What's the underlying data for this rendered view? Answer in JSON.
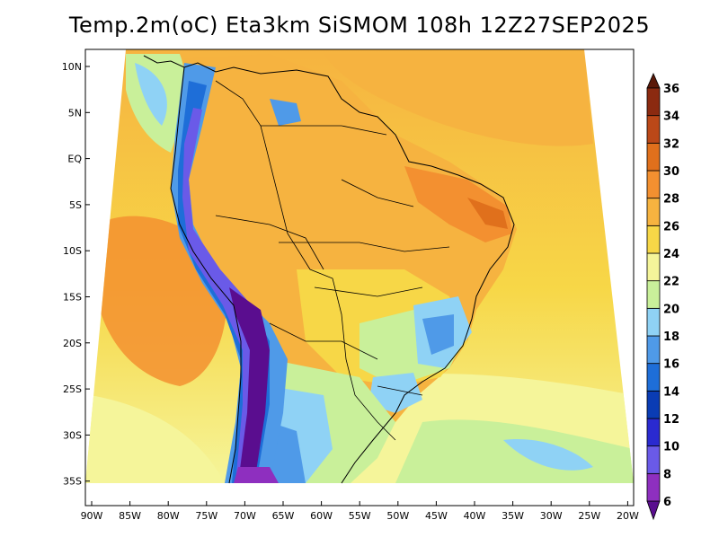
{
  "title": "Temp.2m(oC) Eta3km SiSMOM 108h 12Z27SEP2025",
  "lat_labels": [
    "10N",
    "5N",
    "EQ",
    "5S",
    "10S",
    "15S",
    "20S",
    "25S",
    "30S",
    "35S"
  ],
  "lon_labels": [
    "90W",
    "85W",
    "80W",
    "75W",
    "70W",
    "65W",
    "60W",
    "55W",
    "50W",
    "45W",
    "40W",
    "35W",
    "30W",
    "25W",
    "20W"
  ],
  "colorbar": {
    "levels": [
      "6",
      "8",
      "10",
      "12",
      "14",
      "16",
      "18",
      "20",
      "22",
      "24",
      "26",
      "28",
      "30",
      "32",
      "34",
      "36"
    ],
    "colors": [
      "#5a0d8f",
      "#8e2fbf",
      "#6a5ae8",
      "#2a2ad0",
      "#0a3cb4",
      "#1e6ed8",
      "#4f9ae8",
      "#8fd2f5",
      "#c9f09a",
      "#f5f59a",
      "#f7d747",
      "#f6b340",
      "#f39030",
      "#e0701c",
      "#bb4818",
      "#8b2a10",
      "#5a1808"
    ]
  }
}
